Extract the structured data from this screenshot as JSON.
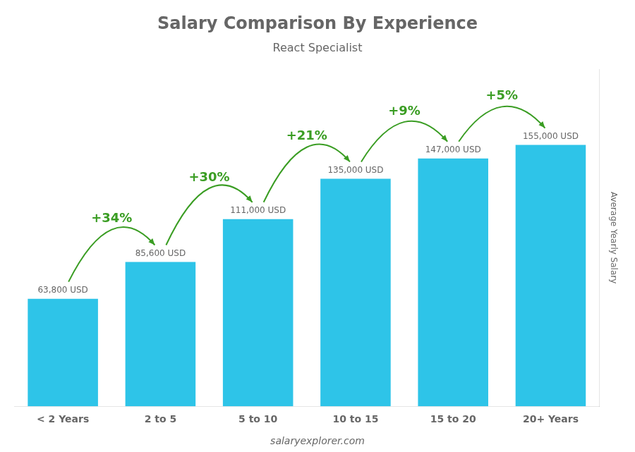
{
  "chart_data": {
    "type": "bar",
    "title": "Salary Comparison By Experience",
    "subtitle": "React Specialist",
    "categories": [
      "< 2 Years",
      "2 to 5",
      "5 to 10",
      "10 to 15",
      "15 to 20",
      "20+ Years"
    ],
    "values": [
      63800,
      85600,
      111000,
      135000,
      147000,
      155000
    ],
    "value_labels": [
      "63,800 USD",
      "85,600 USD",
      "111,000 USD",
      "135,000 USD",
      "147,000 USD",
      "155,000 USD"
    ],
    "data_labels": true,
    "color": "#2EC4E8",
    "ylabel": "Average Yearly Salary",
    "ylim": [
      0,
      200000
    ],
    "yticks": [],
    "tick_labels": "x",
    "grid": false,
    "annotations": [
      {
        "text": "+34%",
        "from": "< 2 Years",
        "to": "2 to 5",
        "color": "#3a9d23"
      },
      {
        "text": "+30%",
        "from": "2 to 5",
        "to": "5 to 10",
        "color": "#3a9d23"
      },
      {
        "text": "+21%",
        "from": "5 to 10",
        "to": "10 to 15",
        "color": "#3a9d23"
      },
      {
        "text": "+9%",
        "from": "10 to 15",
        "to": "15 to 20",
        "color": "#3a9d23"
      },
      {
        "text": "+5%",
        "from": "15 to 20",
        "to": "20+ Years",
        "color": "#3a9d23"
      }
    ],
    "footer": "salaryexplorer.com"
  }
}
